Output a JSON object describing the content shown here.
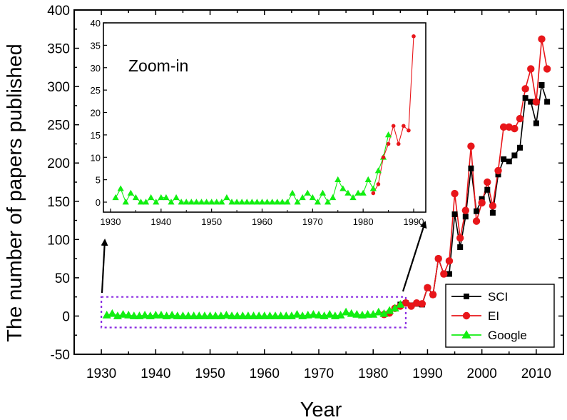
{
  "chart_data": {
    "type": "line",
    "xlabel": "Year",
    "ylabel": "The number of papers published",
    "xlim": [
      1925,
      2015
    ],
    "ylim": [
      -50,
      400
    ],
    "xticks": [
      1930,
      1940,
      1950,
      1960,
      1970,
      1980,
      1990,
      2000,
      2010
    ],
    "yticks": [
      -50,
      0,
      50,
      100,
      150,
      200,
      250,
      300,
      350,
      400
    ],
    "legend_position": "bottom-right",
    "series": [
      {
        "name": "SCI",
        "color": "#000000",
        "marker": "square",
        "x": [
          1985,
          1986,
          1987,
          1988,
          1989,
          1990,
          1991,
          1992,
          1993,
          1994,
          1995,
          1996,
          1997,
          1998,
          1999,
          2000,
          2001,
          2002,
          2003,
          2004,
          2005,
          2006,
          2007,
          2008,
          2009,
          2010,
          2011,
          2012
        ],
        "y": [
          15,
          17,
          14,
          16,
          15,
          37,
          28,
          75,
          55,
          55,
          133,
          90,
          130,
          193,
          137,
          153,
          165,
          135,
          185,
          205,
          202,
          210,
          220,
          285,
          280,
          252,
          302,
          280
        ]
      },
      {
        "name": "EI",
        "color": "#e8161a",
        "marker": "circle",
        "x": [
          1982,
          1983,
          1984,
          1985,
          1986,
          1987,
          1988,
          1989,
          1990,
          1991,
          1992,
          1993,
          1994,
          1995,
          1996,
          1997,
          1998,
          1999,
          2000,
          2001,
          2002,
          2003,
          2004,
          2005,
          2006,
          2007,
          2008,
          2009,
          2010,
          2011,
          2012
        ],
        "y": [
          2,
          4,
          10,
          13,
          17,
          13,
          17,
          16,
          37,
          28,
          75,
          55,
          72,
          160,
          102,
          138,
          222,
          124,
          148,
          175,
          144,
          190,
          247,
          247,
          245,
          258,
          297,
          323,
          280,
          362,
          323
        ]
      },
      {
        "name": "Google",
        "color": "#11ee11",
        "marker": "triangle",
        "x": [
          1931,
          1932,
          1933,
          1934,
          1935,
          1936,
          1937,
          1938,
          1939,
          1940,
          1941,
          1942,
          1943,
          1944,
          1945,
          1946,
          1947,
          1948,
          1949,
          1950,
          1951,
          1952,
          1953,
          1954,
          1955,
          1956,
          1957,
          1958,
          1959,
          1960,
          1961,
          1962,
          1963,
          1964,
          1965,
          1966,
          1967,
          1968,
          1969,
          1970,
          1971,
          1972,
          1973,
          1974,
          1975,
          1976,
          1977,
          1978,
          1979,
          1980,
          1981,
          1982,
          1983,
          1984,
          1985
        ],
        "y": [
          1,
          3,
          0,
          2,
          1,
          0,
          0,
          1,
          0,
          1,
          1,
          0,
          1,
          0,
          0,
          0,
          0,
          0,
          0,
          0,
          0,
          0,
          1,
          0,
          0,
          0,
          0,
          0,
          0,
          0,
          0,
          0,
          0,
          0,
          0,
          2,
          0,
          1,
          2,
          1,
          0,
          2,
          0,
          1,
          5,
          3,
          2,
          1,
          2,
          2,
          5,
          3,
          7,
          10,
          15
        ]
      }
    ],
    "highlight_box": {
      "x_range": [
        1930,
        1986
      ],
      "y_range": [
        -15,
        25
      ],
      "color": "#8a2be2"
    },
    "inset": {
      "annotation": "Zoom-in",
      "xlim": [
        1930,
        1990
      ],
      "ylim": [
        0,
        40
      ],
      "xticks": [
        1930,
        1940,
        1950,
        1960,
        1970,
        1980,
        1990
      ],
      "yticks": [
        0,
        5,
        10,
        15,
        20,
        25,
        30,
        35,
        40
      ],
      "series": [
        {
          "name": "Google",
          "color": "#11ee11",
          "marker": "triangle",
          "x": [
            1931,
            1932,
            1933,
            1934,
            1935,
            1936,
            1937,
            1938,
            1939,
            1940,
            1941,
            1942,
            1943,
            1944,
            1945,
            1946,
            1947,
            1948,
            1949,
            1950,
            1951,
            1952,
            1953,
            1954,
            1955,
            1956,
            1957,
            1958,
            1959,
            1960,
            1961,
            1962,
            1963,
            1964,
            1965,
            1966,
            1967,
            1968,
            1969,
            1970,
            1971,
            1972,
            1973,
            1974,
            1975,
            1976,
            1977,
            1978,
            1979,
            1980,
            1981,
            1982,
            1983,
            1984,
            1985
          ],
          "y": [
            1,
            3,
            0,
            2,
            1,
            0,
            0,
            1,
            0,
            1,
            1,
            0,
            1,
            0,
            0,
            0,
            0,
            0,
            0,
            0,
            0,
            0,
            1,
            0,
            0,
            0,
            0,
            0,
            0,
            0,
            0,
            0,
            0,
            0,
            0,
            2,
            0,
            1,
            2,
            1,
            0,
            2,
            0,
            1,
            5,
            3,
            2,
            1,
            2,
            2,
            5,
            3,
            7,
            10,
            15
          ]
        },
        {
          "name": "EI",
          "color": "#e8161a",
          "marker": "circle",
          "x": [
            1982,
            1983,
            1984,
            1985,
            1986,
            1987,
            1988,
            1989,
            1990
          ],
          "y": [
            2,
            4,
            10,
            13,
            17,
            13,
            17,
            16,
            37
          ]
        }
      ]
    }
  }
}
